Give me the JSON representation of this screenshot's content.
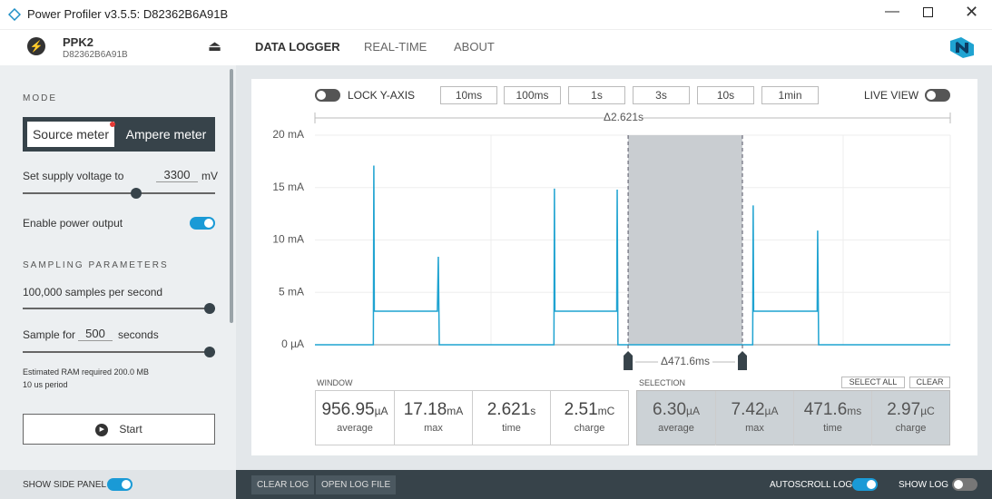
{
  "window": {
    "title": "Power Profiler v3.5.5: D82362B6A91B"
  },
  "device": {
    "name": "PPK2",
    "serial": "D82362B6A91B"
  },
  "nav": {
    "tabs": [
      "DATA LOGGER",
      "REAL-TIME",
      "ABOUT"
    ]
  },
  "side_panel": {
    "mode_heading": "MODE",
    "modes": [
      "Source meter",
      "Ampere meter"
    ],
    "voltage_label": "Set supply voltage to",
    "voltage_value": "3300",
    "voltage_unit": "mV",
    "power_output_label": "Enable power output",
    "sampling_heading": "SAMPLING PARAMETERS",
    "rate_label": "100,000 samples per second",
    "sample_for_label": "Sample for",
    "sample_for_value": "500",
    "sample_for_unit": "seconds",
    "ram_note": "Estimated RAM required 200.0 MB",
    "period_note": "10 us period",
    "start_button": "Start"
  },
  "toolbar": {
    "lock_y_axis": "LOCK Y-AXIS",
    "zoom_buttons": [
      "10ms",
      "100ms",
      "1s",
      "3s",
      "10s",
      "1min"
    ],
    "live_view": "LIVE VIEW"
  },
  "chart": {
    "type": "line",
    "window_label": "Δ2.621s",
    "selection_label": "Δ471.6ms",
    "xlim": [
      0,
      2.621
    ],
    "ylim": [
      0,
      20
    ],
    "yticks": [
      {
        "value": 0,
        "label": "0 µA"
      },
      {
        "value": 5,
        "label": "5 mA"
      },
      {
        "value": 10,
        "label": "10 mA"
      },
      {
        "value": 15,
        "label": "15 mA"
      },
      {
        "value": 20,
        "label": "20 mA"
      }
    ],
    "grid": true,
    "selection_x": [
      1.292,
      1.7636
    ],
    "series": [
      {
        "color": "#1fa3d1",
        "x": [
          0,
          0.241,
          0.243,
          0.245,
          0.505,
          0.509,
          0.513,
          0.986,
          0.988,
          0.99,
          1.245,
          1.247,
          1.25,
          1.806,
          1.808,
          1.81,
          2.072,
          2.074,
          2.078,
          2.621
        ],
        "values": [
          0,
          0,
          17.1,
          3.2,
          3.2,
          8.4,
          0,
          0,
          14.9,
          3.2,
          3.2,
          14.8,
          0,
          0,
          13.3,
          3.2,
          3.2,
          10.9,
          0,
          0
        ]
      }
    ]
  },
  "window_stats": {
    "heading": "WINDOW",
    "items": [
      {
        "value": "956.95",
        "unit": "µA",
        "label": "average"
      },
      {
        "value": "17.18",
        "unit": "mA",
        "label": "max"
      },
      {
        "value": "2.621",
        "unit": "s",
        "label": "time"
      },
      {
        "value": "2.51",
        "unit": "mC",
        "label": "charge"
      }
    ]
  },
  "selection_stats": {
    "heading": "SELECTION",
    "select_all": "SELECT ALL",
    "clear": "CLEAR",
    "items": [
      {
        "value": "6.30",
        "unit": "µA",
        "label": "average"
      },
      {
        "value": "7.42",
        "unit": "µA",
        "label": "max"
      },
      {
        "value": "471.6",
        "unit": "ms",
        "label": "time"
      },
      {
        "value": "2.97",
        "unit": "µC",
        "label": "charge"
      }
    ]
  },
  "footer": {
    "show_side_panel": "SHOW SIDE PANEL",
    "clear_log": "CLEAR LOG",
    "open_log_file": "OPEN LOG FILE",
    "autoscroll_log": "AUTOSCROLL LOG",
    "show_log": "SHOW LOG"
  }
}
